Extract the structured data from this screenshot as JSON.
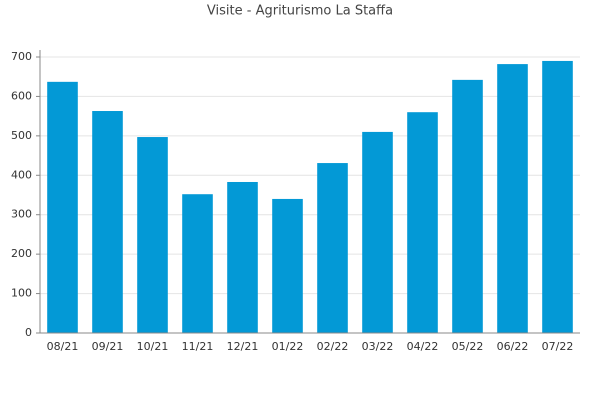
{
  "chart_data": {
    "type": "bar",
    "title": "Visite - Agriturismo La Staffa",
    "categories": [
      "08/21",
      "09/21",
      "10/21",
      "11/21",
      "12/21",
      "01/22",
      "02/22",
      "03/22",
      "04/22",
      "05/22",
      "06/22",
      "07/22"
    ],
    "values": [
      637,
      563,
      497,
      352,
      383,
      340,
      431,
      510,
      560,
      642,
      682,
      690
    ],
    "color": "#0399d6",
    "ylim": [
      0,
      700
    ],
    "yticks": [
      0,
      100,
      200,
      300,
      400,
      500,
      600,
      700
    ],
    "grid": true
  }
}
